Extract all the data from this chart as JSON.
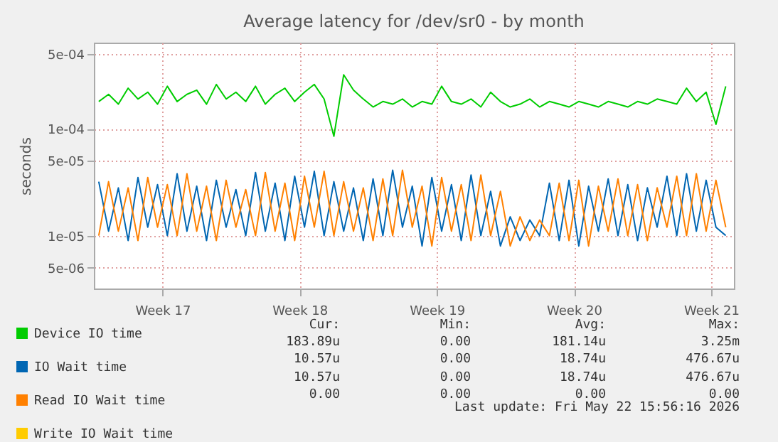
{
  "chart_data": {
    "type": "line",
    "title": "Average latency for /dev/sr0 - by month",
    "ylabel": "seconds",
    "log": "y",
    "grid": true,
    "legend": "bottom",
    "line_style": "solid",
    "marker": "none",
    "xlim": [
      "2026-04-20T00:00",
      "2026-05-22T16:00"
    ],
    "xticks": [
      {
        "value": "2026-04-23T12:00",
        "label": "Week 17"
      },
      {
        "value": "2026-04-30T12:00",
        "label": "Week 18"
      },
      {
        "value": "2026-05-07T12:00",
        "label": "Week 19"
      },
      {
        "value": "2026-05-14T12:00",
        "label": "Week 20"
      },
      {
        "value": "2026-05-21T12:00",
        "label": "Week 21"
      }
    ],
    "ylim": [
      3.2e-06,
      0.00064
    ],
    "yticks": [
      {
        "value": 5e-06,
        "label": "5e-06"
      },
      {
        "value": 1e-05,
        "label": "1e-05"
      },
      {
        "value": 5e-05,
        "label": "5e-05"
      },
      {
        "value": 0.0001,
        "label": "1e-04"
      },
      {
        "value": 0.0005,
        "label": "5e-04"
      }
    ],
    "x": [
      "2026-04-20T06:00",
      "2026-04-20T18:00",
      "2026-04-21T06:00",
      "2026-04-21T18:00",
      "2026-04-22T06:00",
      "2026-04-22T18:00",
      "2026-04-23T06:00",
      "2026-04-23T18:00",
      "2026-04-24T06:00",
      "2026-04-24T18:00",
      "2026-04-25T06:00",
      "2026-04-25T18:00",
      "2026-04-26T06:00",
      "2026-04-26T18:00",
      "2026-04-27T06:00",
      "2026-04-27T18:00",
      "2026-04-28T06:00",
      "2026-04-28T18:00",
      "2026-04-29T06:00",
      "2026-04-29T18:00",
      "2026-04-30T06:00",
      "2026-04-30T18:00",
      "2026-05-01T06:00",
      "2026-05-01T18:00",
      "2026-05-02T06:00",
      "2026-05-02T18:00",
      "2026-05-03T06:00",
      "2026-05-03T18:00",
      "2026-05-04T06:00",
      "2026-05-04T18:00",
      "2026-05-05T06:00",
      "2026-05-05T18:00",
      "2026-05-06T06:00",
      "2026-05-06T18:00",
      "2026-05-07T06:00",
      "2026-05-07T18:00",
      "2026-05-08T06:00",
      "2026-05-08T18:00",
      "2026-05-09T06:00",
      "2026-05-09T18:00",
      "2026-05-10T06:00",
      "2026-05-10T18:00",
      "2026-05-11T06:00",
      "2026-05-11T18:00",
      "2026-05-12T06:00",
      "2026-05-12T18:00",
      "2026-05-13T06:00",
      "2026-05-13T18:00",
      "2026-05-14T06:00",
      "2026-05-14T18:00",
      "2026-05-15T06:00",
      "2026-05-15T18:00",
      "2026-05-16T06:00",
      "2026-05-16T18:00",
      "2026-05-17T06:00",
      "2026-05-17T18:00",
      "2026-05-18T06:00",
      "2026-05-18T18:00",
      "2026-05-19T06:00",
      "2026-05-19T18:00",
      "2026-05-20T06:00",
      "2026-05-20T18:00",
      "2026-05-21T06:00",
      "2026-05-21T18:00",
      "2026-05-22T06:00"
    ],
    "series": [
      {
        "name": "Device IO time",
        "color": "#00cc00",
        "values": [
          0.00018,
          0.00021,
          0.00017,
          0.00024,
          0.00019,
          0.00022,
          0.00017,
          0.00025,
          0.00018,
          0.00021,
          0.00023,
          0.00017,
          0.00026,
          0.00019,
          0.00022,
          0.00018,
          0.00025,
          0.00017,
          0.00021,
          0.00024,
          0.00018,
          0.00022,
          0.00026,
          0.00019,
          8.5e-05,
          0.00032,
          0.00023,
          0.00019,
          0.00016,
          0.00018,
          0.00017,
          0.00019,
          0.00016,
          0.00018,
          0.00017,
          0.00025,
          0.00018,
          0.00017,
          0.00019,
          0.00016,
          0.00022,
          0.00018,
          0.00016,
          0.00017,
          0.00019,
          0.00016,
          0.00018,
          0.00017,
          0.00016,
          0.00018,
          0.00017,
          0.00016,
          0.00018,
          0.00017,
          0.00016,
          0.00018,
          0.00017,
          0.00019,
          0.00018,
          0.00017,
          0.00024,
          0.00018,
          0.00022,
          0.00011,
          0.00025
        ]
      },
      {
        "name": "IO Wait time",
        "color": "#0066b3",
        "values": [
          3.2e-05,
          1.1e-05,
          2.8e-05,
          9e-06,
          3.5e-05,
          1.2e-05,
          3e-05,
          1e-05,
          3.8e-05,
          1.1e-05,
          2.9e-05,
          9e-06,
          3.3e-05,
          1.2e-05,
          2.7e-05,
          1e-05,
          3.9e-05,
          1.1e-05,
          3.1e-05,
          9e-06,
          3.6e-05,
          1.2e-05,
          4e-05,
          1e-05,
          3.2e-05,
          1.1e-05,
          2.8e-05,
          9e-06,
          3.4e-05,
          1e-05,
          4.1e-05,
          1.2e-05,
          2.9e-05,
          8e-06,
          3.5e-05,
          1.1e-05,
          3e-05,
          9e-06,
          3.7e-05,
          1e-05,
          2.6e-05,
          8e-06,
          1.5e-05,
          9e-06,
          1.4e-05,
          1e-05,
          3.1e-05,
          9e-06,
          3.3e-05,
          8e-06,
          2.9e-05,
          1.1e-05,
          3.4e-05,
          1e-05,
          3e-05,
          9e-06,
          2.8e-05,
          1.2e-05,
          3.6e-05,
          1e-05,
          3.8e-05,
          1.1e-05,
          3.3e-05,
          1.2e-05,
          1e-05
        ]
      },
      {
        "name": "Read IO Wait time",
        "color": "#ff8000",
        "values": [
          1e-05,
          3.2e-05,
          1.1e-05,
          2.8e-05,
          9e-06,
          3.5e-05,
          1.2e-05,
          3e-05,
          1e-05,
          3.8e-05,
          1.1e-05,
          2.9e-05,
          9e-06,
          3.3e-05,
          1.2e-05,
          2.7e-05,
          1e-05,
          3.9e-05,
          1.1e-05,
          3.1e-05,
          9e-06,
          3.6e-05,
          1.2e-05,
          4e-05,
          1e-05,
          3.2e-05,
          1.1e-05,
          2.8e-05,
          9e-06,
          3.4e-05,
          1e-05,
          4.1e-05,
          1.2e-05,
          2.9e-05,
          8e-06,
          3.5e-05,
          1.1e-05,
          3e-05,
          9e-06,
          3.7e-05,
          1e-05,
          2.6e-05,
          8e-06,
          1.5e-05,
          9e-06,
          1.4e-05,
          1e-05,
          3.1e-05,
          9e-06,
          3.3e-05,
          8e-06,
          2.9e-05,
          1.1e-05,
          3.4e-05,
          1e-05,
          3e-05,
          9e-06,
          2.8e-05,
          1.2e-05,
          3.6e-05,
          1e-05,
          3.8e-05,
          1.1e-05,
          3.3e-05,
          1.2e-05
        ]
      },
      {
        "name": "Write IO Wait time",
        "color": "#ffcc00",
        "values": [
          null,
          null,
          null,
          null,
          null,
          null,
          null,
          null,
          null,
          null,
          null,
          null,
          null,
          null,
          null,
          null,
          null,
          null,
          null,
          null,
          null,
          null,
          null,
          null,
          null,
          null,
          null,
          null,
          null,
          null,
          null,
          null,
          null,
          null,
          null,
          null,
          null,
          null,
          null,
          null,
          null,
          null,
          null,
          null,
          null,
          null,
          null,
          null,
          null,
          null,
          null,
          null,
          null,
          null,
          null,
          null,
          null,
          null,
          null,
          null,
          null,
          null,
          null,
          null,
          null
        ]
      }
    ],
    "annotations": [
      "Cur:",
      "Min:",
      "Avg:",
      "Max:",
      "183.89u",
      "0.00",
      "181.14u",
      "3.25m",
      "10.57u",
      "0.00",
      "18.74u",
      "476.67u",
      "10.57u",
      "0.00",
      "18.74u",
      "476.67u",
      "0.00",
      "0.00",
      "0.00",
      "0.00",
      "Last update: Fri May 22 15:56:16 2026"
    ]
  }
}
